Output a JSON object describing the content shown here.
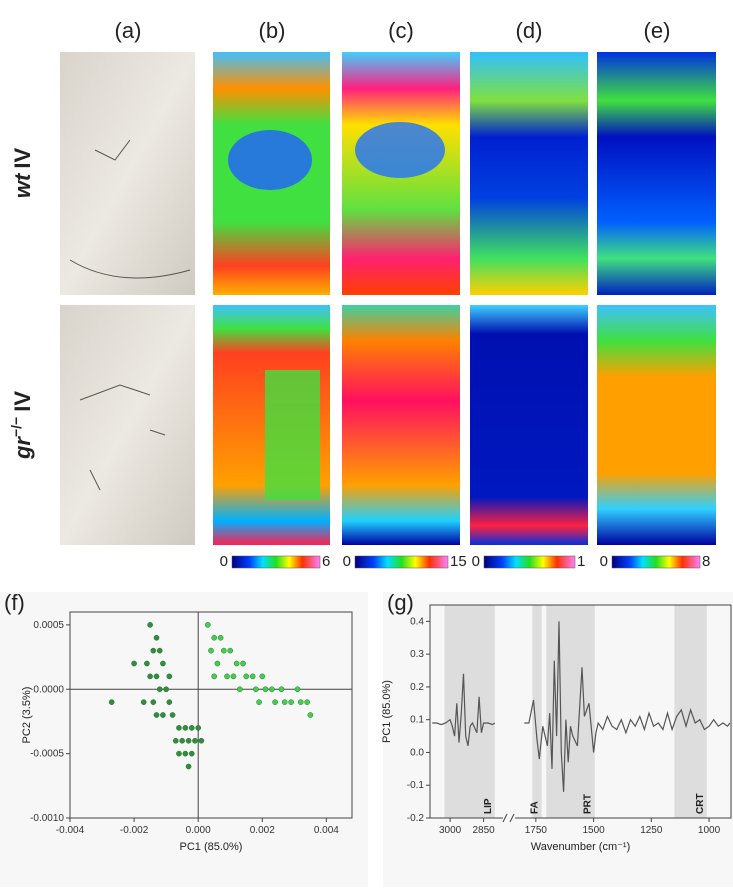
{
  "panel_labels": [
    "(a)",
    "(b)",
    "(c)",
    "(d)",
    "(e)"
  ],
  "row_labels": [
    {
      "italic": "wt",
      "rest": "IV"
    },
    {
      "italic": "gr",
      "sup": "−/−",
      "rest": "IV"
    }
  ],
  "colorbars": [
    {
      "min": "0",
      "max": "6"
    },
    {
      "min": "0",
      "max": "15"
    },
    {
      "min": "0",
      "max": "1"
    },
    {
      "min": "0",
      "max": "8"
    }
  ],
  "chart_data": [
    {
      "type": "scatter",
      "label": "(f)",
      "xlabel": "PC1 (85.0%)",
      "ylabel": "PC2 (3.5%)",
      "xlim": [
        -0.004,
        0.0048
      ],
      "ylim": [
        -0.001,
        0.0006
      ],
      "xticks": [
        -0.004,
        -0.002,
        {
          "value": 0,
          "label": "0.000"
        },
        0.002,
        0.004
      ],
      "yticks": [
        {
          "value": -0.001,
          "label": "-0.0010"
        },
        -0.0005,
        {
          "value": 0,
          "label": "0.0000"
        },
        0.0005
      ],
      "series": [
        {
          "color": "#2f8f3c",
          "x": [
            -0.0015,
            -0.0013,
            -0.0014,
            -0.0012,
            -0.0016,
            -0.0011,
            -0.0013,
            -0.0015,
            -0.001,
            -0.0012,
            -0.0014,
            -0.0009,
            -0.0011,
            -0.0008,
            -0.0013,
            -0.0006,
            -0.0004,
            -0.0002,
            -0.0005,
            -0.0003,
            -0.0001,
            -0.0007,
            -0.0004,
            -0.0002,
            -0.0006,
            -0.0003,
            0,
            0.0001,
            -0.002,
            -0.0027,
            -0.0009,
            -0.0017
          ],
          "values": [
            0.0005,
            0.0004,
            0.0003,
            0.0003,
            0.0002,
            0.0002,
            0.0001,
            0.0001,
            0,
            0,
            -0.0001,
            -0.0001,
            -0.0002,
            -0.0002,
            -0.0002,
            -0.0003,
            -0.0003,
            -0.0003,
            -0.0004,
            -0.0004,
            -0.0004,
            -0.0004,
            -0.0005,
            -0.0005,
            -0.0005,
            -0.0006,
            -0.0003,
            -0.0004,
            0.0002,
            -0.0001,
            0.0001,
            -0.0001
          ]
        },
        {
          "color": "#3fd14c",
          "x": [
            0.0003,
            0.0005,
            0.0004,
            0.0007,
            0.0008,
            0.0006,
            0.001,
            0.0012,
            0.0011,
            0.0014,
            0.0015,
            0.0017,
            0.0018,
            0.002,
            0.0021,
            0.0023,
            0.0024,
            0.0026,
            0.0027,
            0.0029,
            0.0031,
            0.0032,
            0.0034,
            0.0035,
            0.0009,
            0.0013,
            0.0019,
            0.0005
          ],
          "values": [
            0.0005,
            0.0004,
            0.0003,
            0.0004,
            0.0003,
            0.0002,
            0.0003,
            0.0002,
            0.0001,
            0.0002,
            0.0001,
            0.0001,
            0,
            0.0001,
            0,
            0,
            -0.0001,
            0,
            -0.0001,
            -0.0001,
            0,
            -0.0001,
            -0.0001,
            -0.0002,
            0.0001,
            0,
            -0.0001,
            0.0001
          ]
        }
      ]
    },
    {
      "type": "line",
      "label": "(g)",
      "xlabel": "Wavenumber (cm⁻¹)",
      "ylabel": "PC1 (85.0%)",
      "xlim": [
        3090,
        905
      ],
      "xbreak": [
        2790,
        1810
      ],
      "ylim": [
        -0.2,
        0.45
      ],
      "xticks": [
        3000,
        2850,
        1750,
        1500,
        1250,
        1000
      ],
      "yticks": [
        -0.2,
        -0.1,
        {
          "value": 0,
          "label": "0.0"
        },
        0.1,
        0.2,
        0.3,
        0.4
      ],
      "bands": [
        {
          "label": "LIP",
          "from": 3025,
          "to": 2800
        },
        {
          "label": "FA",
          "from": 1765,
          "to": 1725
        },
        {
          "label": "PRT",
          "from": 1705,
          "to": 1495
        },
        {
          "label": "CRT",
          "from": 1150,
          "to": 1010
        }
      ],
      "series": [
        {
          "color": "#555555",
          "x": [
            3080,
            3060,
            3040,
            3020,
            3000,
            2990,
            2980,
            2970,
            2960,
            2950,
            2940,
            2930,
            2920,
            2910,
            2900,
            2880,
            2870,
            2860,
            2850,
            2830,
            2810,
            2800,
            null,
            1800,
            1780,
            1760,
            1745,
            1735,
            1720,
            1700,
            1690,
            1680,
            1670,
            1660,
            1650,
            1640,
            1630,
            1620,
            1610,
            1600,
            1590,
            1570,
            1550,
            1540,
            1520,
            1500,
            1490,
            1480,
            1460,
            1440,
            1420,
            1400,
            1380,
            1360,
            1340,
            1320,
            1300,
            1280,
            1260,
            1240,
            1220,
            1200,
            1180,
            1160,
            1140,
            1120,
            1100,
            1080,
            1060,
            1040,
            1020,
            1000,
            980,
            960,
            940,
            920,
            910
          ],
          "values": [
            0.09,
            0.09,
            0.085,
            0.09,
            0.1,
            0.08,
            0.05,
            0.15,
            0.03,
            0.12,
            0.24,
            0.05,
            0.02,
            0.08,
            0.09,
            0.06,
            0.17,
            0.06,
            0.09,
            0.09,
            0.085,
            0.09,
            null,
            0.09,
            0.09,
            0.16,
            0.04,
            -0.02,
            0.08,
            0.02,
            0.12,
            -0.05,
            0.28,
            0.05,
            0.4,
            0,
            -0.12,
            0.1,
            -0.03,
            0.08,
            0.05,
            0.02,
            0.26,
            0.11,
            0.15,
            0,
            0.06,
            0.09,
            0.07,
            0.11,
            0.08,
            0.07,
            0.1,
            0.06,
            0.1,
            0.08,
            0.11,
            0.07,
            0.12,
            0.08,
            0.09,
            0.07,
            0.12,
            0.07,
            0.11,
            0.13,
            0.08,
            0.13,
            0.09,
            0.1,
            0.07,
            0.08,
            0.1,
            0.08,
            0.09,
            0.08,
            0.09
          ]
        }
      ]
    }
  ]
}
